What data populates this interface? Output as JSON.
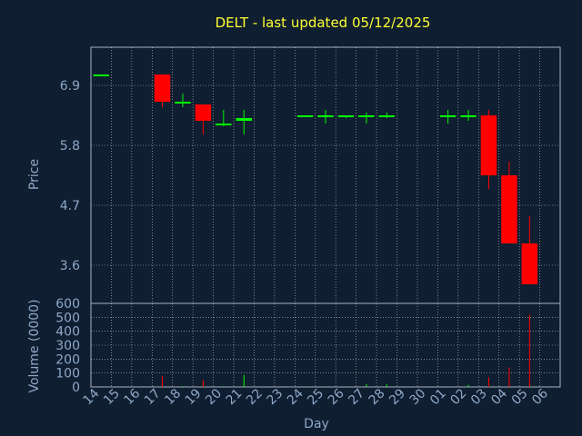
{
  "colors": {
    "background": "#0f1e30",
    "title": "#ffff33",
    "axis_text": "#8ea8c8",
    "grid": "#ffffff",
    "up": "#00ff00",
    "down": "#ff0000",
    "neutral": "#00ff00"
  },
  "chart_data": [
    {
      "type": "candlestick",
      "title": "DELT - last updated 05/12/2025",
      "ylabel": "Price",
      "xlabel": "Day",
      "grid": true,
      "ylim": [
        2.9,
        7.6
      ],
      "yticks": [
        "6.9",
        "5.8",
        "4.7",
        "3.6"
      ],
      "ytick_values": [
        6.9,
        5.8,
        4.7,
        3.6
      ],
      "categories": [
        "14",
        "15",
        "16",
        "17",
        "18",
        "19",
        "20",
        "21",
        "22",
        "23",
        "24",
        "25",
        "26",
        "27",
        "28",
        "29",
        "30",
        "01",
        "02",
        "03",
        "04",
        "05",
        "06"
      ],
      "candles": [
        {
          "day": "14",
          "open": 7.1,
          "close": 7.1,
          "high": 7.1,
          "low": 7.1
        },
        {
          "day": "17",
          "open": 7.1,
          "close": 6.6,
          "high": 7.1,
          "low": 6.5
        },
        {
          "day": "18",
          "open": 6.6,
          "close": 6.6,
          "high": 6.75,
          "low": 6.5
        },
        {
          "day": "19",
          "open": 6.55,
          "close": 6.25,
          "high": 6.55,
          "low": 6.0
        },
        {
          "day": "20",
          "open": 6.2,
          "close": 6.2,
          "high": 6.45,
          "low": 6.15
        },
        {
          "day": "21",
          "open": 6.25,
          "close": 6.3,
          "high": 6.45,
          "low": 6.0
        },
        {
          "day": "24",
          "open": 6.35,
          "close": 6.35,
          "high": 6.35,
          "low": 6.35
        },
        {
          "day": "25",
          "open": 6.35,
          "close": 6.35,
          "high": 6.45,
          "low": 6.2
        },
        {
          "day": "26",
          "open": 6.35,
          "close": 6.35,
          "high": 6.35,
          "low": 6.3
        },
        {
          "day": "27",
          "open": 6.35,
          "close": 6.35,
          "high": 6.4,
          "low": 6.2
        },
        {
          "day": "28",
          "open": 6.35,
          "close": 6.35,
          "high": 6.4,
          "low": 6.3
        },
        {
          "day": "01",
          "open": 6.35,
          "close": 6.35,
          "high": 6.45,
          "low": 6.2
        },
        {
          "day": "02",
          "open": 6.35,
          "close": 6.35,
          "high": 6.45,
          "low": 6.25
        },
        {
          "day": "03",
          "open": 6.35,
          "close": 5.25,
          "high": 6.45,
          "low": 5.0
        },
        {
          "day": "04",
          "open": 5.25,
          "close": 4.0,
          "high": 5.5,
          "low": 4.0
        },
        {
          "day": "05",
          "open": 4.0,
          "close": 3.25,
          "high": 4.5,
          "low": 3.25
        }
      ]
    },
    {
      "type": "bar",
      "ylabel": "Volume (0000)",
      "ylim": [
        0,
        600
      ],
      "yticks": [
        "600",
        "500",
        "400",
        "300",
        "200",
        "100",
        "0"
      ],
      "ytick_values": [
        600,
        500,
        400,
        300,
        200,
        100,
        0
      ],
      "categories": [
        "14",
        "15",
        "16",
        "17",
        "18",
        "19",
        "20",
        "21",
        "22",
        "23",
        "24",
        "25",
        "26",
        "27",
        "28",
        "29",
        "30",
        "01",
        "02",
        "03",
        "04",
        "05",
        "06"
      ],
      "bars": [
        {
          "day": "14",
          "value": 0,
          "dir": "up"
        },
        {
          "day": "17",
          "value": 80,
          "dir": "down"
        },
        {
          "day": "18",
          "value": 5,
          "dir": "up"
        },
        {
          "day": "19",
          "value": 50,
          "dir": "down"
        },
        {
          "day": "20",
          "value": 5,
          "dir": "up"
        },
        {
          "day": "21",
          "value": 85,
          "dir": "up"
        },
        {
          "day": "24",
          "value": 3,
          "dir": "up"
        },
        {
          "day": "25",
          "value": 3,
          "dir": "up"
        },
        {
          "day": "26",
          "value": 3,
          "dir": "up"
        },
        {
          "day": "27",
          "value": 20,
          "dir": "up"
        },
        {
          "day": "28",
          "value": 20,
          "dir": "up"
        },
        {
          "day": "01",
          "value": 3,
          "dir": "up"
        },
        {
          "day": "02",
          "value": 15,
          "dir": "up"
        },
        {
          "day": "03",
          "value": 70,
          "dir": "down"
        },
        {
          "day": "04",
          "value": 140,
          "dir": "down"
        },
        {
          "day": "05",
          "value": 520,
          "dir": "down"
        }
      ]
    }
  ]
}
